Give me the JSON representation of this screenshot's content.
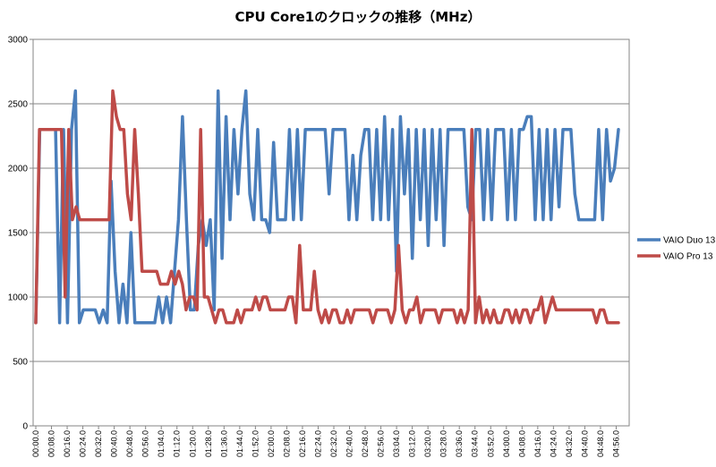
{
  "chart_data": {
    "type": "line",
    "title": "CPU Core1のクロックの推移（MHz）",
    "xlabel": "",
    "ylabel": "",
    "ylim": [
      0,
      3000
    ],
    "yticks": [
      0,
      500,
      1000,
      1500,
      2000,
      2500,
      3000
    ],
    "grid": true,
    "legend_position": "right",
    "x_tick_labels": [
      "00:00.0",
      "00:08.0",
      "00:16.0",
      "00:24.0",
      "00:32.0",
      "00:40.0",
      "00:48.0",
      "00:56.0",
      "01:04.0",
      "01:12.0",
      "01:20.0",
      "01:28.0",
      "01:36.0",
      "01:44.0",
      "01:52.0",
      "02:00.0",
      "02:08.0",
      "02:16.0",
      "02:24.0",
      "02:32.0",
      "02:40.0",
      "02:48.0",
      "02:56.0",
      "03:04.0",
      "03:12.0",
      "03:20.0",
      "03:28.0",
      "03:36.0",
      "03:44.0",
      "03:52.0",
      "04:00.0",
      "04:08.0",
      "04:16.0",
      "04:24.0",
      "04:32.0",
      "04:40.0",
      "04:48.0",
      "04:56.0"
    ],
    "x_seconds_per_point": 2,
    "series": [
      {
        "name": "VAIO Duo 13",
        "color": "#4a7ebb",
        "values": [
          800,
          2300,
          2300,
          2300,
          2300,
          2300,
          800,
          2300,
          800,
          2300,
          2600,
          800,
          900,
          900,
          900,
          900,
          800,
          900,
          800,
          1900,
          1200,
          800,
          1100,
          800,
          1500,
          800,
          800,
          800,
          800,
          800,
          800,
          1000,
          800,
          1000,
          800,
          1200,
          1600,
          2400,
          1600,
          900,
          900,
          1400,
          1600,
          1400,
          1600,
          900,
          2600,
          1300,
          2400,
          1600,
          2300,
          1800,
          2300,
          2600,
          1800,
          1600,
          2300,
          1600,
          1600,
          1500,
          2200,
          1600,
          1600,
          1600,
          2300,
          1600,
          2300,
          1600,
          2300,
          2300,
          2300,
          2300,
          2300,
          2300,
          1800,
          2300,
          2300,
          2300,
          2300,
          1600,
          2100,
          1600,
          2100,
          2300,
          2300,
          1600,
          2300,
          1600,
          2400,
          1600,
          2300,
          1200,
          2400,
          1800,
          2300,
          1300,
          2300,
          1600,
          2300,
          1400,
          2300,
          1600,
          2300,
          1400,
          2300,
          2300,
          2300,
          2300,
          2300,
          1700,
          1600,
          2300,
          2300,
          1600,
          2300,
          1600,
          2300,
          2300,
          2300,
          1600,
          2300,
          1600,
          2300,
          2300,
          2400,
          2400,
          1600,
          2300,
          1600,
          2300,
          1600,
          2300,
          1700,
          2300,
          2300,
          2300,
          1800,
          1600,
          1600,
          1600,
          1600,
          1600,
          2300,
          1600,
          2300,
          1900,
          2000,
          2300
        ]
      },
      {
        "name": "VAIO Pro 13",
        "color": "#be4b48",
        "values": [
          800,
          2300,
          2300,
          2300,
          2300,
          2300,
          2300,
          2300,
          1000,
          2300,
          1600,
          1700,
          1600,
          1600,
          1600,
          1600,
          1600,
          1600,
          1600,
          1600,
          1600,
          2600,
          2400,
          2300,
          2300,
          1800,
          1600,
          2300,
          1800,
          1200,
          1200,
          1200,
          1200,
          1200,
          1100,
          1100,
          1100,
          1200,
          1100,
          1200,
          1100,
          900,
          1000,
          1000,
          900,
          2300,
          1000,
          1000,
          900,
          800,
          900,
          900,
          800,
          800,
          800,
          900,
          800,
          900,
          900,
          900,
          1000,
          900,
          1000,
          1000,
          900,
          900,
          900,
          900,
          900,
          1000,
          1000,
          800,
          1400,
          900,
          900,
          900,
          1200,
          900,
          800,
          900,
          800,
          900,
          900,
          800,
          800,
          900,
          800,
          900,
          900,
          900,
          900,
          900,
          800,
          900,
          900,
          900,
          900,
          800,
          900,
          1400,
          900,
          800,
          900,
          900,
          1000,
          800,
          900,
          900,
          900,
          900,
          800,
          900,
          900,
          900,
          900,
          800,
          900,
          800,
          900,
          2300,
          800,
          1000,
          800,
          900,
          800,
          900,
          800,
          800,
          900,
          900,
          800,
          900,
          800,
          900,
          900,
          800,
          900,
          900,
          1000,
          800,
          900,
          1000,
          900,
          900,
          900,
          900,
          900,
          900,
          900,
          900,
          900,
          900,
          900,
          800,
          900,
          900,
          800,
          800,
          800,
          800
        ]
      }
    ]
  }
}
